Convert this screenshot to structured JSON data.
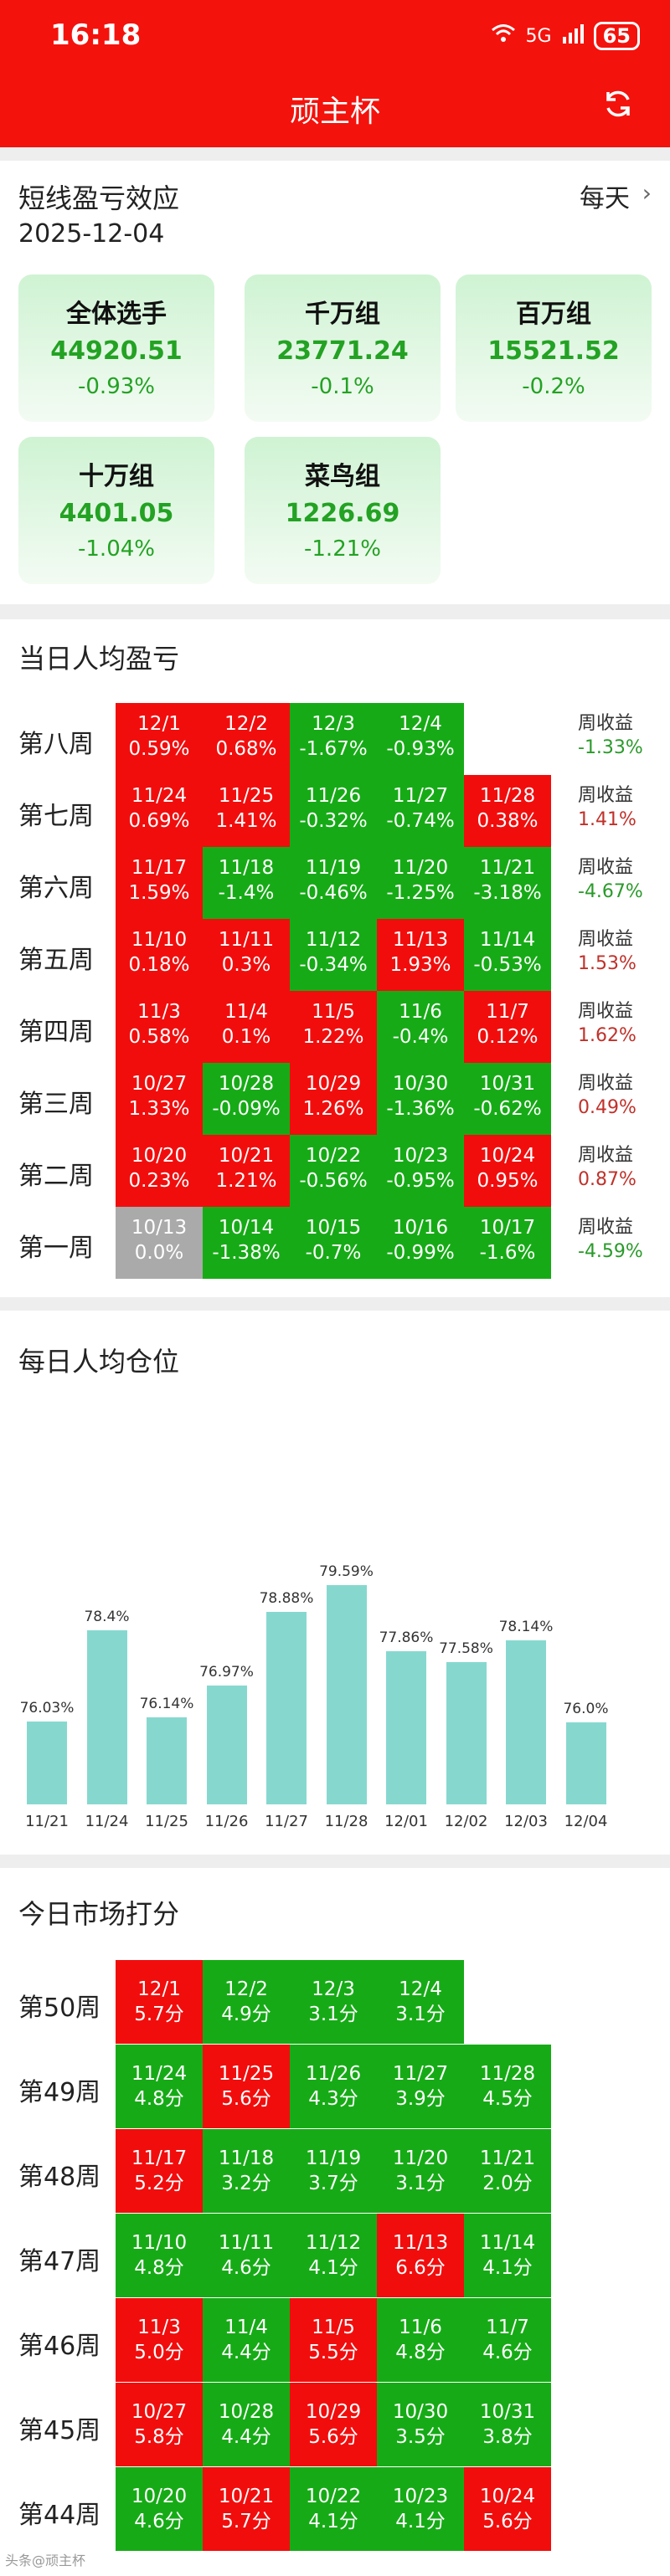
{
  "status": {
    "time": "16:18",
    "network": "5G",
    "battery": "65"
  },
  "app": {
    "title": "顽主杯",
    "refresh_icon": "refresh-icon"
  },
  "overview": {
    "title": "短线盈亏效应",
    "period": "每天",
    "date": "2025-12-04",
    "groups": [
      {
        "name": "全体选手",
        "value": "44920.51",
        "pct": "-0.93%"
      },
      {
        "name": "千万组",
        "value": "23771.24",
        "pct": "-0.1%"
      },
      {
        "name": "百万组",
        "value": "15521.52",
        "pct": "-0.2%"
      },
      {
        "name": "十万组",
        "value": "4401.05",
        "pct": "-1.04%"
      },
      {
        "name": "菜鸟组",
        "value": "1226.69",
        "pct": "-1.21%"
      }
    ]
  },
  "daily_pnl": {
    "title": "当日人均盈亏",
    "weekly_label": "周收益",
    "weeks": [
      {
        "label": "第八周",
        "weekly": "-1.33%",
        "weekly_color": "#2a9a2a",
        "cells": [
          {
            "d": "12/1",
            "v": "0.59%",
            "c": "red"
          },
          {
            "d": "12/2",
            "v": "0.68%",
            "c": "red"
          },
          {
            "d": "12/3",
            "v": "-1.67%",
            "c": "green"
          },
          {
            "d": "12/4",
            "v": "-0.93%",
            "c": "green"
          }
        ]
      },
      {
        "label": "第七周",
        "weekly": "1.41%",
        "weekly_color": "#c0312a",
        "cells": [
          {
            "d": "11/24",
            "v": "0.69%",
            "c": "red"
          },
          {
            "d": "11/25",
            "v": "1.41%",
            "c": "red"
          },
          {
            "d": "11/26",
            "v": "-0.32%",
            "c": "green"
          },
          {
            "d": "11/27",
            "v": "-0.74%",
            "c": "green"
          },
          {
            "d": "11/28",
            "v": "0.38%",
            "c": "red"
          }
        ]
      },
      {
        "label": "第六周",
        "weekly": "-4.67%",
        "weekly_color": "#2a9a2a",
        "cells": [
          {
            "d": "11/17",
            "v": "1.59%",
            "c": "red"
          },
          {
            "d": "11/18",
            "v": "-1.4%",
            "c": "green"
          },
          {
            "d": "11/19",
            "v": "-0.46%",
            "c": "green"
          },
          {
            "d": "11/20",
            "v": "-1.25%",
            "c": "green"
          },
          {
            "d": "11/21",
            "v": "-3.18%",
            "c": "green"
          }
        ]
      },
      {
        "label": "第五周",
        "weekly": "1.53%",
        "weekly_color": "#c0312a",
        "cells": [
          {
            "d": "11/10",
            "v": "0.18%",
            "c": "red"
          },
          {
            "d": "11/11",
            "v": "0.3%",
            "c": "red"
          },
          {
            "d": "11/12",
            "v": "-0.34%",
            "c": "green"
          },
          {
            "d": "11/13",
            "v": "1.93%",
            "c": "red"
          },
          {
            "d": "11/14",
            "v": "-0.53%",
            "c": "green"
          }
        ]
      },
      {
        "label": "第四周",
        "weekly": "1.62%",
        "weekly_color": "#c0312a",
        "cells": [
          {
            "d": "11/3",
            "v": "0.58%",
            "c": "red"
          },
          {
            "d": "11/4",
            "v": "0.1%",
            "c": "red"
          },
          {
            "d": "11/5",
            "v": "1.22%",
            "c": "red"
          },
          {
            "d": "11/6",
            "v": "-0.4%",
            "c": "green"
          },
          {
            "d": "11/7",
            "v": "0.12%",
            "c": "red"
          }
        ]
      },
      {
        "label": "第三周",
        "weekly": "0.49%",
        "weekly_color": "#c0312a",
        "cells": [
          {
            "d": "10/27",
            "v": "1.33%",
            "c": "red"
          },
          {
            "d": "10/28",
            "v": "-0.09%",
            "c": "green"
          },
          {
            "d": "10/29",
            "v": "1.26%",
            "c": "red"
          },
          {
            "d": "10/30",
            "v": "-1.36%",
            "c": "green"
          },
          {
            "d": "10/31",
            "v": "-0.62%",
            "c": "green"
          }
        ]
      },
      {
        "label": "第二周",
        "weekly": "0.87%",
        "weekly_color": "#c0312a",
        "cells": [
          {
            "d": "10/20",
            "v": "0.23%",
            "c": "red"
          },
          {
            "d": "10/21",
            "v": "1.21%",
            "c": "red"
          },
          {
            "d": "10/22",
            "v": "-0.56%",
            "c": "green"
          },
          {
            "d": "10/23",
            "v": "-0.95%",
            "c": "green"
          },
          {
            "d": "10/24",
            "v": "0.95%",
            "c": "red"
          }
        ]
      },
      {
        "label": "第一周",
        "weekly": "-4.59%",
        "weekly_color": "#2a9a2a",
        "cells": [
          {
            "d": "10/13",
            "v": "0.0%",
            "c": "gray"
          },
          {
            "d": "10/14",
            "v": "-1.38%",
            "c": "green"
          },
          {
            "d": "10/15",
            "v": "-0.7%",
            "c": "green"
          },
          {
            "d": "10/16",
            "v": "-0.99%",
            "c": "green"
          },
          {
            "d": "10/17",
            "v": "-1.6%",
            "c": "green"
          }
        ]
      }
    ]
  },
  "position": {
    "title": "每日人均仓位",
    "chart_data": {
      "type": "bar",
      "categories": [
        "11/21",
        "11/24",
        "11/25",
        "11/26",
        "11/27",
        "11/28",
        "12/01",
        "12/02",
        "12/03",
        "12/04"
      ],
      "values": [
        76.03,
        78.4,
        76.14,
        76.97,
        78.88,
        79.59,
        77.86,
        77.58,
        78.14,
        76.0
      ],
      "labels": [
        "76.03%",
        "78.4%",
        "76.14%",
        "76.97%",
        "78.88%",
        "79.59%",
        "77.86%",
        "77.58%",
        "78.14%",
        "76.0%"
      ],
      "bar_color": "#86d8cf"
    }
  },
  "market_score": {
    "title": "今日市场打分",
    "weeks": [
      {
        "label": "第50周",
        "cells": [
          {
            "d": "12/1",
            "v": "5.7分",
            "c": "red"
          },
          {
            "d": "12/2",
            "v": "4.9分",
            "c": "green"
          },
          {
            "d": "12/3",
            "v": "3.1分",
            "c": "green"
          },
          {
            "d": "12/4",
            "v": "3.1分",
            "c": "green"
          }
        ]
      },
      {
        "label": "第49周",
        "cells": [
          {
            "d": "11/24",
            "v": "4.8分",
            "c": "green"
          },
          {
            "d": "11/25",
            "v": "5.6分",
            "c": "red"
          },
          {
            "d": "11/26",
            "v": "4.3分",
            "c": "green"
          },
          {
            "d": "11/27",
            "v": "3.9分",
            "c": "green"
          },
          {
            "d": "11/28",
            "v": "4.5分",
            "c": "green"
          }
        ]
      },
      {
        "label": "第48周",
        "cells": [
          {
            "d": "11/17",
            "v": "5.2分",
            "c": "red"
          },
          {
            "d": "11/18",
            "v": "3.2分",
            "c": "green"
          },
          {
            "d": "11/19",
            "v": "3.7分",
            "c": "green"
          },
          {
            "d": "11/20",
            "v": "3.1分",
            "c": "green"
          },
          {
            "d": "11/21",
            "v": "2.0分",
            "c": "green"
          }
        ]
      },
      {
        "label": "第47周",
        "cells": [
          {
            "d": "11/10",
            "v": "4.8分",
            "c": "green"
          },
          {
            "d": "11/11",
            "v": "4.6分",
            "c": "green"
          },
          {
            "d": "11/12",
            "v": "4.1分",
            "c": "green"
          },
          {
            "d": "11/13",
            "v": "6.6分",
            "c": "red"
          },
          {
            "d": "11/14",
            "v": "4.1分",
            "c": "green"
          }
        ]
      },
      {
        "label": "第46周",
        "cells": [
          {
            "d": "11/3",
            "v": "5.0分",
            "c": "red"
          },
          {
            "d": "11/4",
            "v": "4.4分",
            "c": "green"
          },
          {
            "d": "11/5",
            "v": "5.5分",
            "c": "red"
          },
          {
            "d": "11/6",
            "v": "4.8分",
            "c": "green"
          },
          {
            "d": "11/7",
            "v": "4.6分",
            "c": "green"
          }
        ]
      },
      {
        "label": "第45周",
        "cells": [
          {
            "d": "10/27",
            "v": "5.8分",
            "c": "red"
          },
          {
            "d": "10/28",
            "v": "4.4分",
            "c": "green"
          },
          {
            "d": "10/29",
            "v": "5.6分",
            "c": "red"
          },
          {
            "d": "10/30",
            "v": "3.5分",
            "c": "green"
          },
          {
            "d": "10/31",
            "v": "3.8分",
            "c": "green"
          }
        ]
      },
      {
        "label": "第44周",
        "cells": [
          {
            "d": "10/20",
            "v": "4.6分",
            "c": "green"
          },
          {
            "d": "10/21",
            "v": "5.7分",
            "c": "red"
          },
          {
            "d": "10/22",
            "v": "4.1分",
            "c": "green"
          },
          {
            "d": "10/23",
            "v": "4.1分",
            "c": "green"
          },
          {
            "d": "10/24",
            "v": "5.6分",
            "c": "red"
          }
        ]
      }
    ]
  },
  "watermark": "头条@顽主杯"
}
